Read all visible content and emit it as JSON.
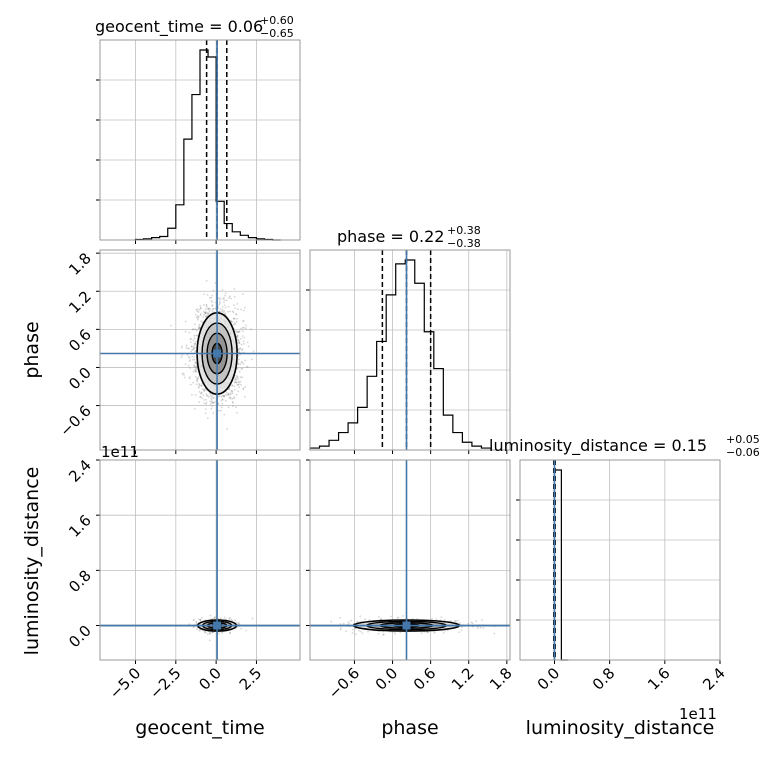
{
  "chart_data": {
    "type": "corner",
    "parameters": [
      "geocent_time",
      "phase",
      "luminosity_distance"
    ],
    "truths": {
      "geocent_time": 0.06,
      "phase": 0.22,
      "luminosity_distance": 0.0
    },
    "titles": [
      {
        "param": "geocent_time",
        "label": "geocent_time = 0.06",
        "upper": "+0.60",
        "lower": "−0.65",
        "median": 0.06,
        "q_low": -0.59,
        "q_high": 0.66
      },
      {
        "param": "phase",
        "label": "phase = 0.22",
        "upper": "+0.38",
        "lower": "−0.38",
        "median": 0.22,
        "q_low": -0.16,
        "q_high": 0.6
      },
      {
        "param": "luminosity_distance",
        "label": "luminosity_distance = 0.15",
        "upper": "+0.05",
        "lower": "−0.06",
        "median": 0.15,
        "q_low": 0.09,
        "q_high": 0.2
      }
    ],
    "axes": {
      "geocent_time": {
        "range": [
          -7.2,
          5.2
        ],
        "ticks": [
          -5.0,
          -2.5,
          0.0,
          2.5
        ],
        "tick_labels": [
          "−5.0",
          "−2.5",
          "0.0",
          "2.5"
        ],
        "label": "geocent_time"
      },
      "phase": {
        "range": [
          -1.3,
          1.85
        ],
        "ticks": [
          -0.6,
          0.0,
          0.6,
          1.2,
          1.8
        ],
        "tick_labels": [
          "−0.6",
          "0.0",
          "0.6",
          "1.2",
          "1.8"
        ],
        "label": "phase"
      },
      "luminosity_distance": {
        "range": [
          -0.5,
          2.4
        ],
        "ticks": [
          0.0,
          0.8,
          1.6,
          2.4
        ],
        "tick_labels": [
          "0.0",
          "0.8",
          "1.6",
          "2.4"
        ],
        "label": "luminosity_distance",
        "offset": "1e11"
      }
    },
    "histograms": {
      "geocent_time": {
        "bin_edges": [
          -5.0,
          -4.5,
          -4.0,
          -3.5,
          -3.0,
          -2.5,
          -2.0,
          -1.5,
          -1.0,
          -0.5,
          0.0,
          0.5,
          1.0,
          1.5,
          2.0,
          2.5,
          3.0,
          3.5,
          4.0
        ],
        "counts": [
          0.5,
          1,
          2,
          3,
          10,
          30,
          86,
          124,
          162,
          156,
          33,
          14,
          7,
          4,
          2,
          1,
          0.5,
          0
        ]
      },
      "phase": {
        "bin_edges": [
          -1.3,
          -1.15,
          -1.0,
          -0.85,
          -0.7,
          -0.55,
          -0.4,
          -0.25,
          -0.1,
          0.05,
          0.2,
          0.35,
          0.5,
          0.65,
          0.8,
          0.95,
          1.1,
          1.25,
          1.4,
          1.55
        ],
        "counts": [
          1,
          2,
          5,
          9,
          14,
          22,
          38,
          56,
          80,
          96,
          98,
          86,
          61,
          42,
          18,
          9,
          4,
          2,
          1
        ]
      },
      "luminosity_distance": {
        "bin_edges": [
          0.0,
          0.1,
          0.2
        ],
        "counts": [
          1.0,
          0
        ]
      }
    },
    "contours": {
      "phase_vs_geocent_time": {
        "center": [
          0.06,
          0.22
        ],
        "sigma": [
          0.62,
          0.32
        ]
      },
      "luminosity_distance_vs_geocent_time": {
        "center": [
          0.06,
          0.0
        ],
        "sigma": [
          0.6,
          0.04
        ]
      },
      "luminosity_distance_vs_phase": {
        "center": [
          0.22,
          0.0
        ],
        "sigma": [
          0.38,
          0.04
        ]
      }
    },
    "colors": {
      "truth": "#4477aa",
      "contour": "#000000",
      "grid": "#c0c0c0",
      "frame": "#9a9a9a",
      "samples": "#777777"
    },
    "grid": true
  }
}
